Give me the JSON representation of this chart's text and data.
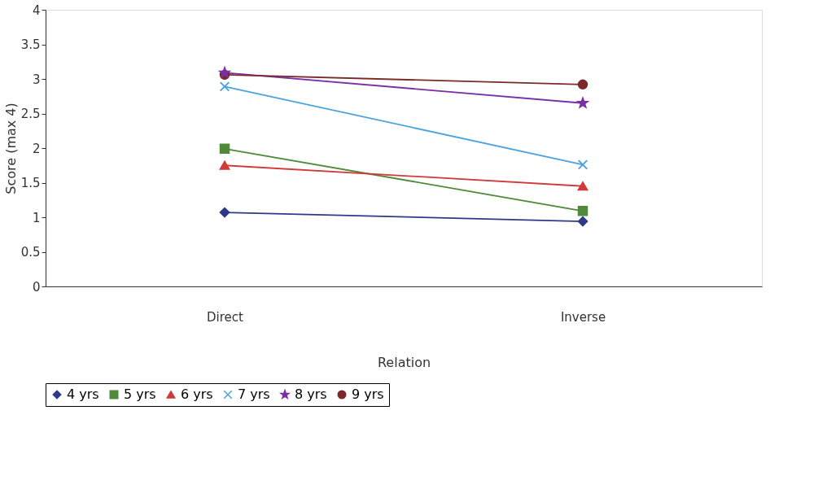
{
  "chart_data": {
    "type": "line",
    "xlabel": "Relation",
    "ylabel": "Score (max 4)",
    "categories": [
      "Direct",
      "Inverse"
    ],
    "series": [
      {
        "name": "4 yrs",
        "color": "#2e3a87",
        "marker": "diamond",
        "values": [
          1.07,
          0.94
        ]
      },
      {
        "name": "5 yrs",
        "color": "#4e8a3a",
        "marker": "square",
        "values": [
          1.99,
          1.09
        ]
      },
      {
        "name": "6 yrs",
        "color": "#d03a3a",
        "marker": "triangle",
        "values": [
          1.75,
          1.45
        ]
      },
      {
        "name": "7 yrs",
        "color": "#4aa3df",
        "marker": "cross",
        "values": [
          2.89,
          1.76
        ]
      },
      {
        "name": "8 yrs",
        "color": "#7b2fa6",
        "marker": "star",
        "values": [
          3.09,
          2.65
        ]
      },
      {
        "name": "9 yrs",
        "color": "#7b2a2a",
        "marker": "circle",
        "values": [
          3.06,
          2.92
        ]
      }
    ],
    "ylim": [
      0,
      4
    ],
    "yticks": [
      0,
      0.5,
      1,
      1.5,
      2,
      2.5,
      3,
      3.5,
      4
    ],
    "grid": false,
    "legend": "bottom",
    "line_style": "solid"
  }
}
